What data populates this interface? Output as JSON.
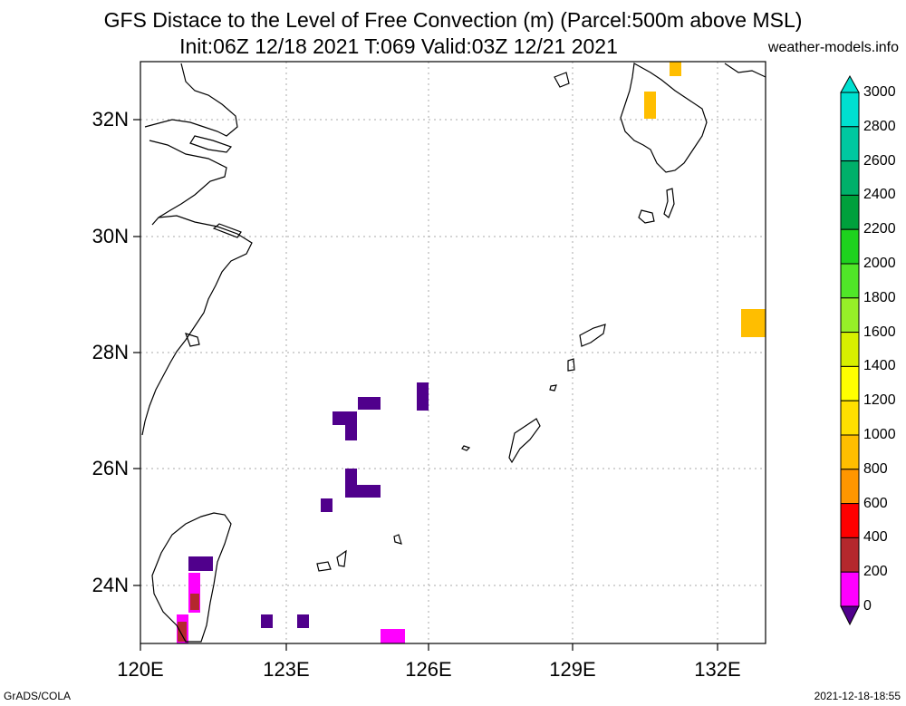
{
  "title_line1": "GFS Distace to the Level of Free Convection (m) (Parcel:500m above MSL)",
  "title_line2": "Init:06Z 12/18 2021 T:069 Valid:03Z 12/21 2021",
  "site": "weather-models.info",
  "credit": "GrADS/COLA",
  "timestamp": "2021-12-18-18:55",
  "lat_labels": [
    "32N",
    "30N",
    "28N",
    "26N",
    "24N"
  ],
  "lon_labels": [
    "120E",
    "123E",
    "126E",
    "129E",
    "132E"
  ],
  "colorbar": {
    "labels": [
      "3000",
      "2800",
      "2600",
      "2400",
      "2200",
      "2000",
      "1800",
      "1600",
      "1400",
      "1200",
      "1000",
      "800",
      "600",
      "400",
      "200",
      "0"
    ],
    "colors": [
      "#00e0d0",
      "#00c8a0",
      "#00b06a",
      "#00a03c",
      "#1ed21e",
      "#50e628",
      "#96f028",
      "#d7f000",
      "#ffff00",
      "#ffe000",
      "#ffbe00",
      "#ff9600",
      "#ff0000",
      "#b4282d",
      "#ff00ff",
      "#50008c"
    ]
  },
  "colors": {
    "lfc_0_200": "#50008c",
    "lfc_200_400": "#ff00ff",
    "lfc_400_600": "#b4282d",
    "lfc_1000_1200": "#ffbe00"
  }
}
